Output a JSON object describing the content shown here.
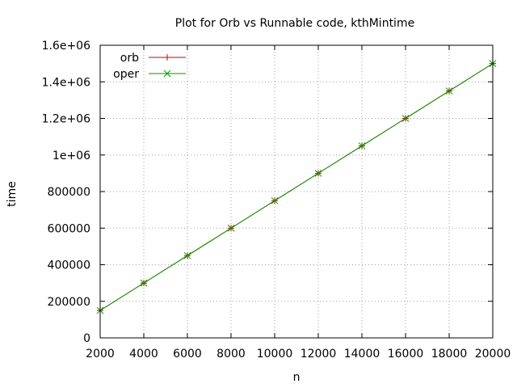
{
  "chart_data": {
    "type": "line",
    "title": "Plot for Orb vs Runnable code, kthMintime",
    "xlabel": "n",
    "ylabel": "time",
    "xlim": [
      2000,
      20000
    ],
    "ylim": [
      0,
      1600000
    ],
    "x_ticks": [
      "2000",
      "4000",
      "6000",
      "8000",
      "10000",
      "12000",
      "14000",
      "16000",
      "18000",
      "20000"
    ],
    "y_ticks": [
      "0",
      "200000",
      "400000",
      "600000",
      "800000",
      "1e+06",
      "1.2e+06",
      "1.4e+06",
      "1.6e+06"
    ],
    "grid": true,
    "legend_position": "top-left",
    "x": [
      2000,
      4000,
      6000,
      8000,
      10000,
      12000,
      14000,
      16000,
      18000,
      20000
    ],
    "series": [
      {
        "name": "orb",
        "color": "#cc0000",
        "marker": "plus",
        "values": [
          150000,
          300000,
          450000,
          600000,
          750000,
          900000,
          1050000,
          1200000,
          1350000,
          1500000
        ]
      },
      {
        "name": "oper",
        "color": "#009900",
        "marker": "cross",
        "values": [
          150000,
          300000,
          450000,
          600000,
          750000,
          900000,
          1050000,
          1200000,
          1350000,
          1500000
        ]
      }
    ]
  }
}
